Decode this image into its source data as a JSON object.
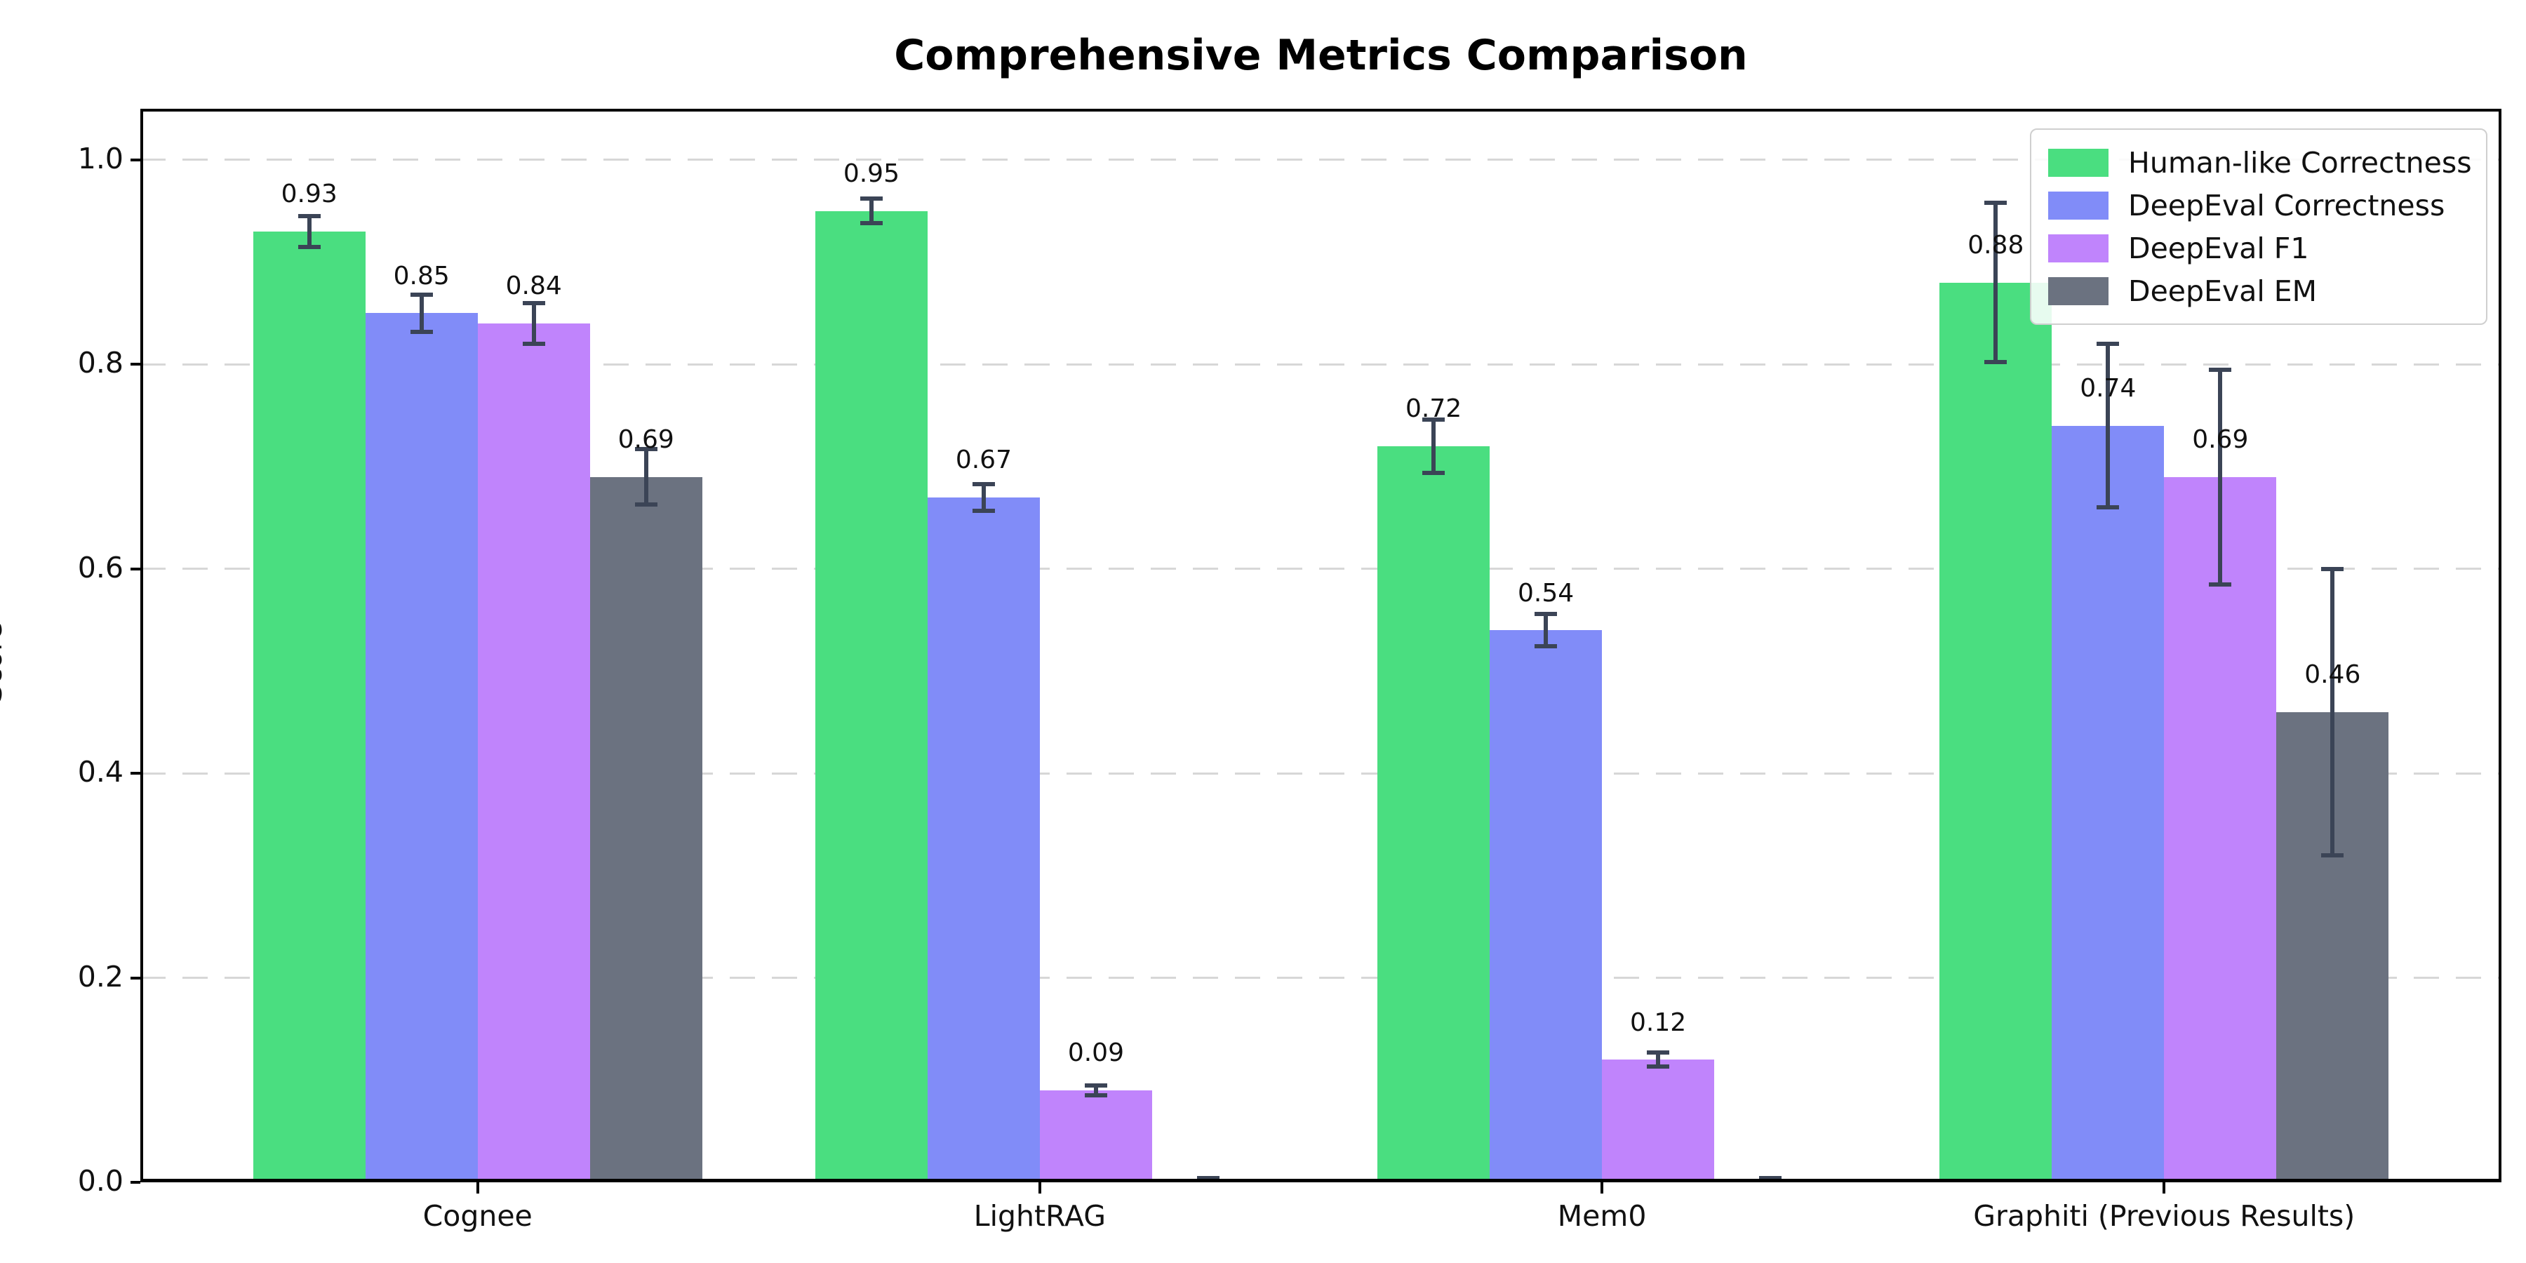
{
  "chart_data": {
    "type": "bar",
    "title": "Comprehensive Metrics Comparison",
    "xlabel": "",
    "ylabel": "Score",
    "categories": [
      "Cognee",
      "LightRAG",
      "Mem0",
      "Graphiti (Previous Results)"
    ],
    "series": [
      {
        "name": "Human-like Correctness",
        "color": "#4ade80",
        "values": [
          0.93,
          0.95,
          0.72,
          0.88
        ],
        "errors": [
          0.015,
          0.012,
          0.026,
          0.078
        ],
        "labels": [
          "0.93",
          "0.95",
          "0.72",
          "0.88"
        ]
      },
      {
        "name": "DeepEval Correctness",
        "color": "#818cf8",
        "values": [
          0.85,
          0.67,
          0.54,
          0.74
        ],
        "errors": [
          0.018,
          0.013,
          0.016,
          0.08
        ],
        "labels": [
          "0.85",
          "0.67",
          "0.54",
          "0.74"
        ]
      },
      {
        "name": "DeepEval F1",
        "color": "#c084fc",
        "values": [
          0.84,
          0.09,
          0.12,
          0.69
        ],
        "errors": [
          0.02,
          0.005,
          0.007,
          0.105
        ],
        "labels": [
          "0.84",
          "0.09",
          "0.12",
          "0.69"
        ]
      },
      {
        "name": "DeepEval EM",
        "color": "#6b7280",
        "values": [
          0.69,
          0.0,
          0.0,
          0.46
        ],
        "errors": [
          0.027,
          0.004,
          0.004,
          0.14
        ],
        "labels": [
          "0.69",
          null,
          null,
          "0.46"
        ]
      }
    ],
    "yticks": [
      {
        "value": 0.0,
        "label": "0.0"
      },
      {
        "value": 0.2,
        "label": "0.2"
      },
      {
        "value": 0.4,
        "label": "0.4"
      },
      {
        "value": 0.6,
        "label": "0.6"
      },
      {
        "value": 0.8,
        "label": "0.8"
      },
      {
        "value": 1.0,
        "label": "1.0"
      }
    ],
    "ylim": [
      0,
      1.05
    ],
    "grid": "horizontal-dashed",
    "grid_color": "#d7d7d7",
    "errorbar_color": "#3b4456",
    "legend_position": "upper right",
    "legend_entries": [
      "Human-like Correctness",
      "DeepEval Correctness",
      "DeepEval F1",
      "DeepEval EM"
    ]
  }
}
